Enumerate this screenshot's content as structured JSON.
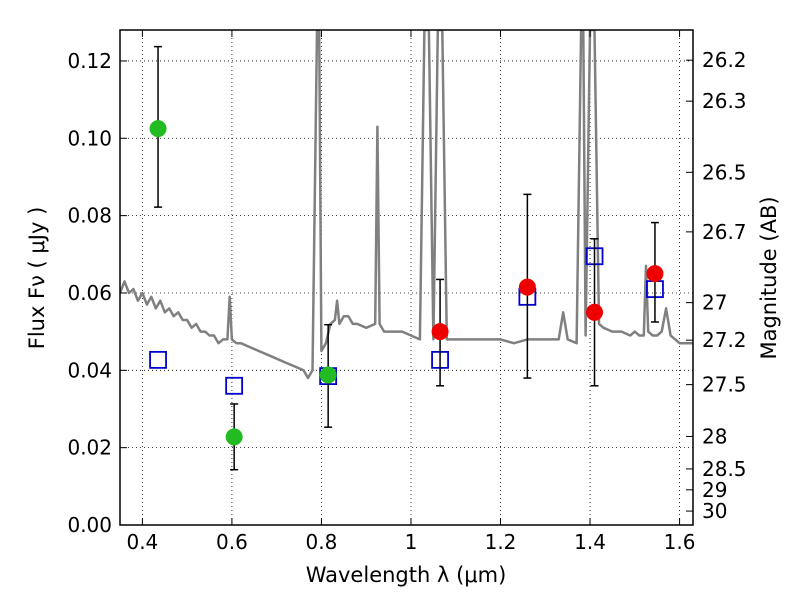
{
  "chart_data": {
    "type": "scatter",
    "title": "",
    "xlabel": "Wavelength  λ (μm)",
    "ylabel": "Flux  Fν  ( μJy )",
    "ylabel_right": "Magnitude (AB)",
    "xlim": [
      0.35,
      1.63
    ],
    "ylim": [
      0.0,
      0.128
    ],
    "grid": true,
    "grid_style": "dotted",
    "x_ticks": [
      0.4,
      0.6,
      0.8,
      1.0,
      1.2,
      1.4,
      1.6
    ],
    "x_tick_labels": [
      "0.4",
      "0.6",
      "0.8",
      "1",
      "1.2",
      "1.4",
      "1.6"
    ],
    "y_ticks": [
      0.0,
      0.02,
      0.04,
      0.06,
      0.08,
      0.1,
      0.12
    ],
    "y_tick_labels": [
      "0.00",
      "0.02",
      "0.04",
      "0.06",
      "0.08",
      "0.10",
      "0.12"
    ],
    "right_ticks": [
      {
        "flux": 0.1202,
        "label": "26.2"
      },
      {
        "flux": 0.1096,
        "label": "26.3"
      },
      {
        "flux": 0.0912,
        "label": "26.5"
      },
      {
        "flux": 0.0758,
        "label": "26.7"
      },
      {
        "flux": 0.0575,
        "label": "27"
      },
      {
        "flux": 0.0478,
        "label": "27.2"
      },
      {
        "flux": 0.0363,
        "label": "27.5"
      },
      {
        "flux": 0.0229,
        "label": "28"
      },
      {
        "flux": 0.0145,
        "label": "28.5"
      },
      {
        "flux": 0.0091,
        "label": "29"
      },
      {
        "flux": 0.0036,
        "label": "30"
      }
    ],
    "series": [
      {
        "kind": "line",
        "color": "#808080",
        "points": [
          [
            0.35,
            0.06
          ],
          [
            0.36,
            0.063
          ],
          [
            0.37,
            0.06
          ],
          [
            0.38,
            0.061
          ],
          [
            0.39,
            0.058
          ],
          [
            0.4,
            0.06
          ],
          [
            0.41,
            0.057
          ],
          [
            0.42,
            0.059
          ],
          [
            0.43,
            0.056
          ],
          [
            0.44,
            0.058
          ],
          [
            0.45,
            0.055
          ],
          [
            0.46,
            0.056
          ],
          [
            0.47,
            0.054
          ],
          [
            0.48,
            0.055
          ],
          [
            0.49,
            0.053
          ],
          [
            0.5,
            0.053
          ],
          [
            0.51,
            0.051
          ],
          [
            0.52,
            0.052
          ],
          [
            0.53,
            0.05
          ],
          [
            0.54,
            0.05
          ],
          [
            0.55,
            0.049
          ],
          [
            0.56,
            0.049
          ],
          [
            0.57,
            0.047
          ],
          [
            0.58,
            0.048
          ],
          [
            0.59,
            0.048
          ],
          [
            0.595,
            0.059
          ],
          [
            0.6,
            0.048
          ],
          [
            0.61,
            0.047
          ],
          [
            0.62,
            0.047
          ],
          [
            0.64,
            0.046
          ],
          [
            0.66,
            0.045
          ],
          [
            0.68,
            0.044
          ],
          [
            0.7,
            0.043
          ],
          [
            0.72,
            0.042
          ],
          [
            0.74,
            0.041
          ],
          [
            0.76,
            0.04
          ],
          [
            0.77,
            0.038
          ],
          [
            0.78,
            0.04
          ],
          [
            0.79,
            0.128
          ],
          [
            0.795,
            0.128
          ],
          [
            0.8,
            0.045
          ],
          [
            0.81,
            0.047
          ],
          [
            0.82,
            0.052
          ],
          [
            0.83,
            0.053
          ],
          [
            0.835,
            0.058
          ],
          [
            0.84,
            0.052
          ],
          [
            0.85,
            0.054
          ],
          [
            0.86,
            0.054
          ],
          [
            0.87,
            0.052
          ],
          [
            0.88,
            0.052
          ],
          [
            0.9,
            0.051
          ],
          [
            0.92,
            0.052
          ],
          [
            0.925,
            0.103
          ],
          [
            0.93,
            0.052
          ],
          [
            0.94,
            0.05
          ],
          [
            0.96,
            0.05
          ],
          [
            0.98,
            0.05
          ],
          [
            1.0,
            0.049
          ],
          [
            1.02,
            0.048
          ],
          [
            1.03,
            0.128
          ],
          [
            1.04,
            0.128
          ],
          [
            1.05,
            0.048
          ],
          [
            1.06,
            0.128
          ],
          [
            1.07,
            0.128
          ],
          [
            1.08,
            0.048
          ],
          [
            1.1,
            0.048
          ],
          [
            1.12,
            0.048
          ],
          [
            1.15,
            0.048
          ],
          [
            1.18,
            0.048
          ],
          [
            1.2,
            0.048
          ],
          [
            1.23,
            0.047
          ],
          [
            1.26,
            0.048
          ],
          [
            1.3,
            0.048
          ],
          [
            1.33,
            0.048
          ],
          [
            1.34,
            0.055
          ],
          [
            1.35,
            0.048
          ],
          [
            1.37,
            0.047
          ],
          [
            1.38,
            0.128
          ],
          [
            1.385,
            0.128
          ],
          [
            1.39,
            0.049
          ],
          [
            1.4,
            0.128
          ],
          [
            1.41,
            0.128
          ],
          [
            1.42,
            0.052
          ],
          [
            1.43,
            0.051
          ],
          [
            1.45,
            0.05
          ],
          [
            1.47,
            0.05
          ],
          [
            1.49,
            0.049
          ],
          [
            1.5,
            0.05
          ],
          [
            1.51,
            0.049
          ],
          [
            1.52,
            0.049
          ],
          [
            1.525,
            0.067
          ],
          [
            1.53,
            0.05
          ],
          [
            1.54,
            0.049
          ],
          [
            1.55,
            0.049
          ],
          [
            1.56,
            0.05
          ],
          [
            1.57,
            0.056
          ],
          [
            1.58,
            0.049
          ],
          [
            1.6,
            0.047
          ],
          [
            1.63,
            0.047
          ]
        ]
      },
      {
        "kind": "marker",
        "shape": "square-open",
        "color": "#0000cc",
        "points": [
          [
            0.435,
            0.0427
          ],
          [
            0.605,
            0.036
          ],
          [
            0.815,
            0.0385
          ],
          [
            1.065,
            0.0427
          ],
          [
            1.26,
            0.059
          ],
          [
            1.41,
            0.0695
          ],
          [
            1.545,
            0.061
          ]
        ]
      },
      {
        "kind": "marker",
        "shape": "circle",
        "color": "#22bb22",
        "points": [
          {
            "x": 0.435,
            "y": 0.1025,
            "err_lo": 0.0822,
            "err_hi": 0.1237
          },
          {
            "x": 0.605,
            "y": 0.0228,
            "err_lo": 0.0143,
            "err_hi": 0.0313
          },
          {
            "x": 0.815,
            "y": 0.0388,
            "err_lo": 0.0253,
            "err_hi": 0.0518
          }
        ]
      },
      {
        "kind": "marker",
        "shape": "circle",
        "color": "#ee0000",
        "points": [
          {
            "x": 1.065,
            "y": 0.05,
            "err_lo": 0.036,
            "err_hi": 0.0635
          },
          {
            "x": 1.26,
            "y": 0.0615,
            "err_lo": 0.038,
            "err_hi": 0.0855
          },
          {
            "x": 1.41,
            "y": 0.055,
            "err_lo": 0.036,
            "err_hi": 0.074
          },
          {
            "x": 1.545,
            "y": 0.065,
            "err_lo": 0.0525,
            "err_hi": 0.0782
          }
        ]
      }
    ]
  }
}
